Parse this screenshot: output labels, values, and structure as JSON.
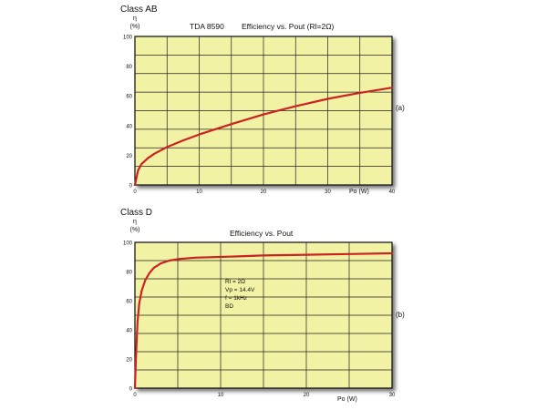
{
  "chart_data": [
    {
      "type": "line",
      "section_label": "Class AB",
      "title_left": "TDA 8590",
      "title": "Efficiency vs. Pout (Rl=2Ω)",
      "ylabel_symbol": "η",
      "ylabel_unit": "(%)",
      "xlabel": "Po (W)",
      "panel_label": "(a)",
      "xlim": [
        0,
        40
      ],
      "ylim": [
        0,
        100
      ],
      "x_ticks": [
        "0",
        "10",
        "20",
        "30",
        "40"
      ],
      "y_ticks": [
        "0",
        "20",
        "40",
        "60",
        "80",
        "100"
      ],
      "grid": true,
      "series": [
        {
          "color": "#cc2222",
          "x": [
            0,
            0.5,
            1,
            2,
            3,
            5,
            7.5,
            10,
            15,
            20,
            25,
            30,
            35,
            40
          ],
          "y": [
            0,
            10,
            14,
            18,
            21,
            25.5,
            30,
            34,
            41,
            47.5,
            53,
            58,
            62,
            65.5
          ]
        }
      ]
    },
    {
      "type": "line",
      "section_label": "Class D",
      "title": "Efficiency vs. Pout",
      "ylabel_symbol": "η",
      "ylabel_unit": "(%)",
      "xlabel": "Po (W)",
      "panel_label": "(b)",
      "xlim": [
        0,
        30
      ],
      "ylim": [
        0,
        100
      ],
      "x_ticks": [
        "0",
        "10",
        "20",
        "30"
      ],
      "y_ticks": [
        "0",
        "20",
        "40",
        "60",
        "80",
        "100"
      ],
      "grid": true,
      "annotations": [
        "Rl = 2Ω",
        "Vp = 14.4V",
        "f = 1kHz",
        "BD"
      ],
      "series": [
        {
          "color": "#cc2222",
          "x": [
            0,
            0.15,
            0.3,
            0.5,
            0.8,
            1.2,
            1.7,
            2.2,
            3,
            4,
            5,
            7,
            10,
            15,
            20,
            25,
            30
          ],
          "y": [
            0,
            25,
            45,
            58,
            67,
            74,
            79,
            82.5,
            85.5,
            87.5,
            88.5,
            89.5,
            90,
            91,
            91.5,
            92,
            92.5
          ]
        }
      ]
    }
  ]
}
